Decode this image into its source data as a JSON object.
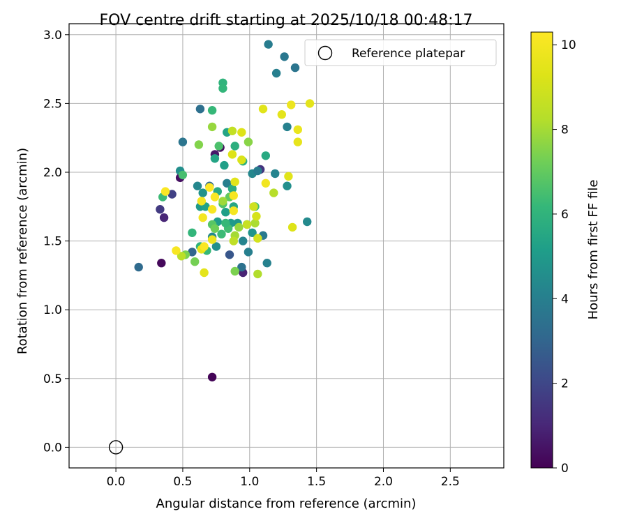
{
  "chart_data": {
    "type": "scatter",
    "title": "FOV centre drift starting at 2025/10/18 00:48:17",
    "xlabel": "Angular distance from reference (arcmin)",
    "ylabel": "Rotation from reference (arcmin)",
    "xlim": [
      -0.35,
      2.9
    ],
    "ylim": [
      -0.15,
      3.08
    ],
    "xticks": [
      0.0,
      0.5,
      1.0,
      1.5,
      2.0,
      2.5
    ],
    "xtick_labels": [
      "0.0",
      "0.5",
      "1.0",
      "1.5",
      "2.0",
      "2.5"
    ],
    "yticks": [
      0.0,
      0.5,
      1.0,
      1.5,
      2.0,
      2.5,
      3.0
    ],
    "ytick_labels": [
      "0.0",
      "0.5",
      "1.0",
      "1.5",
      "2.0",
      "2.5",
      "3.0"
    ],
    "grid": true,
    "legend": {
      "placement": "top-right",
      "label": "Reference platepar"
    },
    "reference_point": {
      "x": 0.0,
      "y": 0.0
    },
    "colorbar": {
      "label": "Hours from first FF file",
      "range": [
        0,
        10.3
      ],
      "ticks": [
        0,
        2,
        4,
        6,
        8,
        10
      ],
      "tick_labels": [
        "0",
        "2",
        "4",
        "6",
        "8",
        "10"
      ],
      "colormap": "viridis"
    },
    "points": [
      {
        "x": 0.72,
        "y": 0.51,
        "h": 0.1
      },
      {
        "x": 0.34,
        "y": 1.34,
        "h": 0.2
      },
      {
        "x": 0.36,
        "y": 1.67,
        "h": 1.0
      },
      {
        "x": 0.33,
        "y": 1.73,
        "h": 1.6
      },
      {
        "x": 0.42,
        "y": 1.84,
        "h": 1.8
      },
      {
        "x": 0.48,
        "y": 1.96,
        "h": 0.4
      },
      {
        "x": 0.74,
        "y": 2.13,
        "h": 0.6
      },
      {
        "x": 0.78,
        "y": 2.18,
        "h": 0.3
      },
      {
        "x": 0.95,
        "y": 1.27,
        "h": 0.9
      },
      {
        "x": 1.08,
        "y": 2.02,
        "h": 1.4
      },
      {
        "x": 0.85,
        "y": 1.4,
        "h": 2.5
      },
      {
        "x": 0.17,
        "y": 1.31,
        "h": 3.2
      },
      {
        "x": 0.5,
        "y": 2.22,
        "h": 3.6
      },
      {
        "x": 0.63,
        "y": 2.46,
        "h": 3.4
      },
      {
        "x": 0.57,
        "y": 1.42,
        "h": 3.0
      },
      {
        "x": 0.94,
        "y": 1.31,
        "h": 3.5
      },
      {
        "x": 0.99,
        "y": 1.42,
        "h": 4.0
      },
      {
        "x": 0.95,
        "y": 1.5,
        "h": 4.2
      },
      {
        "x": 1.1,
        "y": 1.54,
        "h": 3.8
      },
      {
        "x": 1.13,
        "y": 1.34,
        "h": 4.1
      },
      {
        "x": 1.14,
        "y": 2.93,
        "h": 3.9
      },
      {
        "x": 1.26,
        "y": 2.84,
        "h": 3.7
      },
      {
        "x": 1.2,
        "y": 2.72,
        "h": 4.0
      },
      {
        "x": 1.34,
        "y": 2.76,
        "h": 3.6
      },
      {
        "x": 1.28,
        "y": 2.33,
        "h": 4.1
      },
      {
        "x": 1.19,
        "y": 1.99,
        "h": 4.2
      },
      {
        "x": 1.28,
        "y": 1.9,
        "h": 4.6
      },
      {
        "x": 1.43,
        "y": 1.64,
        "h": 4.4
      },
      {
        "x": 1.02,
        "y": 1.99,
        "h": 4.3
      },
      {
        "x": 1.06,
        "y": 2.01,
        "h": 3.9
      },
      {
        "x": 0.98,
        "y": 1.62,
        "h": 4.5
      },
      {
        "x": 0.83,
        "y": 1.92,
        "h": 4.0
      },
      {
        "x": 0.61,
        "y": 1.9,
        "h": 4.3
      },
      {
        "x": 0.65,
        "y": 1.85,
        "h": 4.7
      },
      {
        "x": 0.7,
        "y": 1.9,
        "h": 3.2
      },
      {
        "x": 1.02,
        "y": 1.56,
        "h": 4.8
      },
      {
        "x": 0.91,
        "y": 1.63,
        "h": 4.9
      },
      {
        "x": 0.48,
        "y": 2.01,
        "h": 4.6
      },
      {
        "x": 0.86,
        "y": 1.63,
        "h": 5.0
      },
      {
        "x": 0.76,
        "y": 1.64,
        "h": 5.1
      },
      {
        "x": 0.72,
        "y": 1.53,
        "h": 4.4
      },
      {
        "x": 0.75,
        "y": 1.46,
        "h": 4.6
      },
      {
        "x": 0.63,
        "y": 1.75,
        "h": 5.0
      },
      {
        "x": 0.67,
        "y": 1.75,
        "h": 5.3
      },
      {
        "x": 0.88,
        "y": 1.75,
        "h": 5.5
      },
      {
        "x": 0.82,
        "y": 1.71,
        "h": 5.2
      },
      {
        "x": 0.74,
        "y": 2.1,
        "h": 5.4
      },
      {
        "x": 0.76,
        "y": 1.86,
        "h": 5.6
      },
      {
        "x": 0.83,
        "y": 2.29,
        "h": 5.4
      },
      {
        "x": 0.81,
        "y": 2.05,
        "h": 5.2
      },
      {
        "x": 0.87,
        "y": 1.88,
        "h": 5.7
      },
      {
        "x": 0.89,
        "y": 2.19,
        "h": 5.8
      },
      {
        "x": 1.12,
        "y": 2.12,
        "h": 5.6
      },
      {
        "x": 0.95,
        "y": 2.08,
        "h": 5.9
      },
      {
        "x": 0.8,
        "y": 2.65,
        "h": 6.0
      },
      {
        "x": 0.8,
        "y": 2.61,
        "h": 6.1
      },
      {
        "x": 0.72,
        "y": 2.45,
        "h": 6.2
      },
      {
        "x": 0.57,
        "y": 1.56,
        "h": 6.1
      },
      {
        "x": 0.63,
        "y": 1.46,
        "h": 6.0
      },
      {
        "x": 0.68,
        "y": 1.43,
        "h": 6.2
      },
      {
        "x": 0.79,
        "y": 1.55,
        "h": 6.3
      },
      {
        "x": 0.84,
        "y": 1.59,
        "h": 6.4
      },
      {
        "x": 0.82,
        "y": 1.63,
        "h": 6.2
      },
      {
        "x": 0.35,
        "y": 1.82,
        "h": 6.3
      },
      {
        "x": 0.5,
        "y": 1.98,
        "h": 6.5
      },
      {
        "x": 1.04,
        "y": 1.75,
        "h": 6.4
      },
      {
        "x": 0.77,
        "y": 2.19,
        "h": 6.6
      },
      {
        "x": 0.8,
        "y": 1.77,
        "h": 6.7
      },
      {
        "x": 0.72,
        "y": 1.62,
        "h": 6.8
      },
      {
        "x": 0.85,
        "y": 1.82,
        "h": 7.0
      },
      {
        "x": 0.59,
        "y": 1.35,
        "h": 7.3
      },
      {
        "x": 0.52,
        "y": 1.4,
        "h": 7.4
      },
      {
        "x": 0.74,
        "y": 1.59,
        "h": 7.2
      },
      {
        "x": 0.62,
        "y": 2.2,
        "h": 7.5
      },
      {
        "x": 0.89,
        "y": 1.28,
        "h": 7.4
      },
      {
        "x": 0.99,
        "y": 2.22,
        "h": 7.6
      },
      {
        "x": 0.72,
        "y": 2.33,
        "h": 7.8
      },
      {
        "x": 0.8,
        "y": 1.79,
        "h": 7.9
      },
      {
        "x": 0.89,
        "y": 1.54,
        "h": 8.0
      },
      {
        "x": 0.92,
        "y": 1.6,
        "h": 7.8
      },
      {
        "x": 1.04,
        "y": 1.63,
        "h": 8.1
      },
      {
        "x": 1.06,
        "y": 1.26,
        "h": 8.2
      },
      {
        "x": 1.18,
        "y": 1.85,
        "h": 8.3
      },
      {
        "x": 0.88,
        "y": 1.5,
        "h": 8.5
      },
      {
        "x": 0.49,
        "y": 1.39,
        "h": 8.4
      },
      {
        "x": 0.87,
        "y": 2.3,
        "h": 8.6
      },
      {
        "x": 0.98,
        "y": 1.62,
        "h": 8.7
      },
      {
        "x": 1.03,
        "y": 1.75,
        "h": 8.9
      },
      {
        "x": 1.06,
        "y": 1.52,
        "h": 9.0
      },
      {
        "x": 1.05,
        "y": 1.68,
        "h": 9.1
      },
      {
        "x": 0.94,
        "y": 2.09,
        "h": 9.2
      },
      {
        "x": 0.94,
        "y": 2.29,
        "h": 9.3
      },
      {
        "x": 0.87,
        "y": 2.13,
        "h": 9.3
      },
      {
        "x": 0.89,
        "y": 1.93,
        "h": 9.4
      },
      {
        "x": 0.66,
        "y": 1.27,
        "h": 9.5
      },
      {
        "x": 0.64,
        "y": 1.44,
        "h": 9.6
      },
      {
        "x": 1.1,
        "y": 2.46,
        "h": 9.4
      },
      {
        "x": 1.24,
        "y": 2.42,
        "h": 9.5
      },
      {
        "x": 1.29,
        "y": 1.97,
        "h": 9.4
      },
      {
        "x": 1.32,
        "y": 1.6,
        "h": 9.3
      },
      {
        "x": 1.45,
        "y": 2.5,
        "h": 9.5
      },
      {
        "x": 1.36,
        "y": 2.22,
        "h": 9.6
      },
      {
        "x": 1.36,
        "y": 2.31,
        "h": 9.7
      },
      {
        "x": 1.31,
        "y": 2.49,
        "h": 9.8
      },
      {
        "x": 1.12,
        "y": 1.92,
        "h": 9.9
      },
      {
        "x": 0.72,
        "y": 1.51,
        "h": 9.8
      },
      {
        "x": 0.88,
        "y": 1.72,
        "h": 10.0
      },
      {
        "x": 0.65,
        "y": 1.67,
        "h": 10.0
      },
      {
        "x": 0.64,
        "y": 1.79,
        "h": 10.0
      },
      {
        "x": 0.72,
        "y": 1.73,
        "h": 10.1
      },
      {
        "x": 0.74,
        "y": 1.82,
        "h": 10.2
      },
      {
        "x": 0.37,
        "y": 1.86,
        "h": 10.2
      },
      {
        "x": 0.45,
        "y": 1.43,
        "h": 10.1
      },
      {
        "x": 0.66,
        "y": 1.46,
        "h": 10.2
      },
      {
        "x": 0.88,
        "y": 1.83,
        "h": 10.1
      },
      {
        "x": 0.7,
        "y": 1.89,
        "h": 10.3
      }
    ]
  }
}
